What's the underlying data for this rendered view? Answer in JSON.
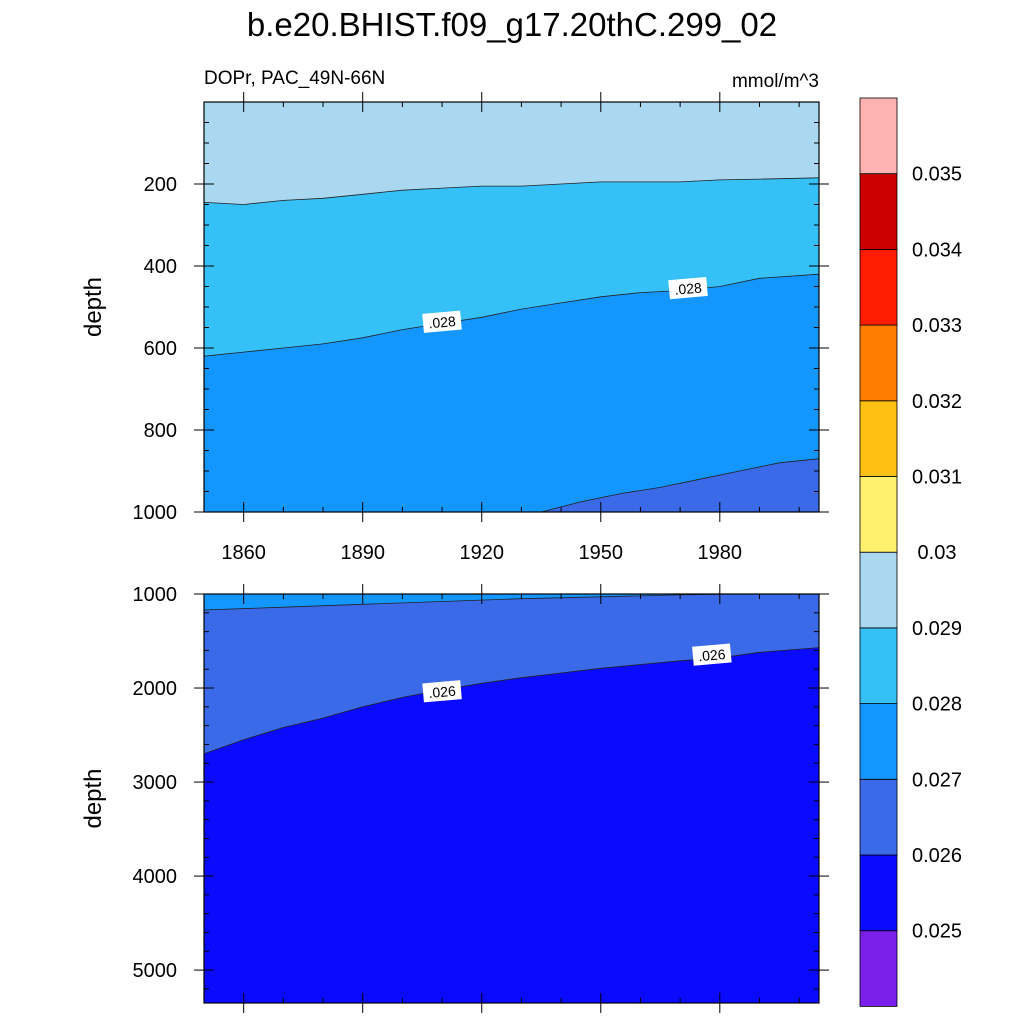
{
  "chart_data": {
    "type": "contour",
    "title": "b.e20.BHIST.f09_g17.20thC.299_02",
    "subtitle_left": "DOPr, PAC_49N-66N",
    "subtitle_right": "mmol/m^3",
    "colorbar": {
      "levels": [
        0.025,
        0.026,
        0.027,
        0.028,
        0.029,
        0.03,
        0.031,
        0.032,
        0.033,
        0.034,
        0.035
      ],
      "labels": [
        "0.025",
        "0.026",
        "0.027",
        "0.028",
        "0.029",
        "0.03",
        "0.031",
        "0.032",
        "0.033",
        "0.034",
        "0.035"
      ],
      "colors": [
        "#7b1fea",
        "#0a0aff",
        "#3a6ae8",
        "#1496ff",
        "#36c0f8",
        "#a9d8f0",
        "#fff06e",
        "#ffc014",
        "#ff7d00",
        "#ff1c00",
        "#cc0000",
        "#ffb2b2"
      ]
    },
    "panels": [
      {
        "name": "upper",
        "ylabel": "depth",
        "xlim": [
          1850,
          2005
        ],
        "ylim": [
          0,
          1000
        ],
        "x_ticks": [
          1860,
          1890,
          1920,
          1950,
          1980
        ],
        "x_tick_labels": [
          "1860",
          "1890",
          "1920",
          "1950",
          "1980"
        ],
        "y_ticks": [
          200,
          400,
          600,
          800,
          1000
        ],
        "y_tick_labels": [
          "200",
          "400",
          "600",
          "800",
          "1000"
        ],
        "background_color": "#a9d8f0",
        "regions": [
          {
            "level": 0.029,
            "color": "#36c0f8",
            "boundary": [
              [
                1850,
                245
              ],
              [
                1860,
                250
              ],
              [
                1870,
                240
              ],
              [
                1880,
                235
              ],
              [
                1890,
                225
              ],
              [
                1900,
                215
              ],
              [
                1910,
                210
              ],
              [
                1920,
                205
              ],
              [
                1930,
                205
              ],
              [
                1940,
                200
              ],
              [
                1950,
                195
              ],
              [
                1960,
                195
              ],
              [
                1970,
                195
              ],
              [
                1980,
                190
              ],
              [
                1990,
                188
              ],
              [
                2005,
                185
              ]
            ]
          },
          {
            "level": 0.028,
            "color": "#1496ff",
            "boundary": [
              [
                1850,
                620
              ],
              [
                1860,
                610
              ],
              [
                1870,
                600
              ],
              [
                1880,
                590
              ],
              [
                1890,
                575
              ],
              [
                1900,
                555
              ],
              [
                1910,
                540
              ],
              [
                1920,
                525
              ],
              [
                1930,
                505
              ],
              [
                1940,
                490
              ],
              [
                1950,
                475
              ],
              [
                1960,
                465
              ],
              [
                1970,
                460
              ],
              [
                1980,
                450
              ],
              [
                1990,
                430
              ],
              [
                2005,
                420
              ]
            ]
          },
          {
            "level": 0.027,
            "color": "#3a6ae8",
            "boundary": [
              [
                1935,
                1000
              ],
              [
                1945,
                975
              ],
              [
                1955,
                955
              ],
              [
                1965,
                940
              ],
              [
                1975,
                920
              ],
              [
                1985,
                900
              ],
              [
                1995,
                880
              ],
              [
                2005,
                870
              ]
            ]
          }
        ],
        "contour_labels": [
          {
            "text": ".028",
            "x": 1910,
            "y": 537
          },
          {
            "text": ".028",
            "x": 1972,
            "y": 455
          }
        ]
      },
      {
        "name": "lower",
        "ylabel": "depth",
        "xlim": [
          1850,
          2005
        ],
        "ylim": [
          1000,
          5350
        ],
        "x_ticks": [
          1860,
          1890,
          1920,
          1950,
          1980
        ],
        "y_ticks": [
          1000,
          2000,
          3000,
          4000,
          5000
        ],
        "y_tick_labels": [
          "1000",
          "2000",
          "3000",
          "4000",
          "5000"
        ],
        "background_color": "#1496ff",
        "regions": [
          {
            "level": 0.027,
            "color": "#3a6ae8",
            "boundary": [
              [
                1850,
                1170
              ],
              [
                1870,
                1140
              ],
              [
                1890,
                1110
              ],
              [
                1910,
                1080
              ],
              [
                1930,
                1050
              ],
              [
                1950,
                1030
              ],
              [
                1970,
                1010
              ],
              [
                1985,
                1000
              ],
              [
                2005,
                1000
              ]
            ]
          },
          {
            "level": 0.026,
            "color": "#0a0aff",
            "boundary": [
              [
                1850,
                2700
              ],
              [
                1860,
                2550
              ],
              [
                1870,
                2420
              ],
              [
                1880,
                2320
              ],
              [
                1890,
                2200
              ],
              [
                1900,
                2100
              ],
              [
                1910,
                2020
              ],
              [
                1920,
                1950
              ],
              [
                1930,
                1890
              ],
              [
                1940,
                1840
              ],
              [
                1950,
                1790
              ],
              [
                1960,
                1750
              ],
              [
                1970,
                1710
              ],
              [
                1980,
                1680
              ],
              [
                1990,
                1620
              ],
              [
                2005,
                1570
              ]
            ]
          }
        ],
        "contour_labels": [
          {
            "text": ".026",
            "x": 1910,
            "y": 2040
          },
          {
            "text": ".026",
            "x": 1978,
            "y": 1650
          }
        ]
      }
    ]
  }
}
